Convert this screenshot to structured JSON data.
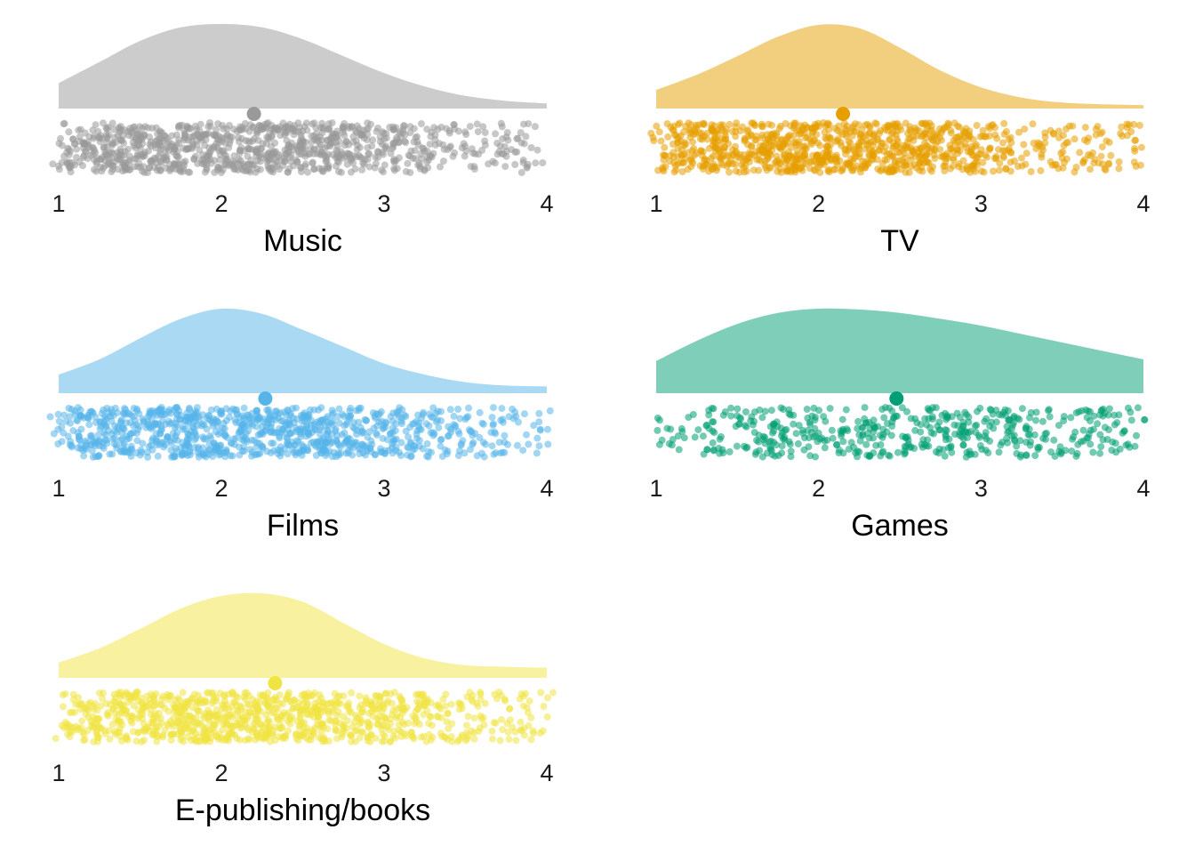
{
  "chart_data": [
    {
      "type": "raincloud",
      "title": "Music",
      "color": "#999999",
      "xlim": [
        1,
        4
      ],
      "xticks": [
        "1",
        "2",
        "3",
        "4"
      ],
      "mean": 2.2,
      "density": {
        "x": [
          1.0,
          1.25,
          1.5,
          1.75,
          2.0,
          2.25,
          2.5,
          2.75,
          3.0,
          3.25,
          3.5,
          3.75,
          4.0
        ],
        "y": [
          0.3,
          0.55,
          0.8,
          0.96,
          1.0,
          0.96,
          0.82,
          0.62,
          0.42,
          0.26,
          0.15,
          0.09,
          0.06
        ]
      },
      "point_density": {
        "x": [
          1.0,
          1.25,
          1.5,
          1.75,
          2.0,
          2.25,
          2.5,
          2.75,
          3.0,
          3.25,
          3.5,
          3.75,
          4.0
        ],
        "w": [
          0.55,
          0.85,
          1.0,
          1.0,
          1.0,
          1.0,
          0.95,
          0.85,
          0.7,
          0.45,
          0.35,
          0.25,
          0.2
        ]
      },
      "n_points": 1000
    },
    {
      "type": "raincloud",
      "title": "TV",
      "color": "#E69F00",
      "xlim": [
        1,
        4
      ],
      "xticks": [
        "1",
        "2",
        "3",
        "4"
      ],
      "mean": 2.15,
      "density": {
        "x": [
          1.0,
          1.25,
          1.5,
          1.75,
          2.0,
          2.25,
          2.5,
          2.75,
          3.0,
          3.25,
          3.5,
          3.75,
          4.0
        ],
        "y": [
          0.22,
          0.4,
          0.62,
          0.85,
          0.99,
          0.95,
          0.72,
          0.45,
          0.25,
          0.13,
          0.07,
          0.05,
          0.04
        ]
      },
      "point_density": {
        "x": [
          1.0,
          1.25,
          1.5,
          1.75,
          2.0,
          2.25,
          2.5,
          2.75,
          3.0,
          3.25,
          3.5,
          3.75,
          4.0
        ],
        "w": [
          0.5,
          0.8,
          0.9,
          1.0,
          1.0,
          1.0,
          0.9,
          0.75,
          0.55,
          0.35,
          0.25,
          0.2,
          0.18
        ]
      },
      "n_points": 1000
    },
    {
      "type": "raincloud",
      "title": "Films",
      "color": "#56B4E9",
      "xlim": [
        1,
        4
      ],
      "xticks": [
        "1",
        "2",
        "3",
        "4"
      ],
      "mean": 2.27,
      "density": {
        "x": [
          1.0,
          1.25,
          1.5,
          1.75,
          2.0,
          2.25,
          2.5,
          2.75,
          3.0,
          3.25,
          3.5,
          3.75,
          4.0
        ],
        "y": [
          0.22,
          0.4,
          0.65,
          0.88,
          1.0,
          0.94,
          0.75,
          0.55,
          0.35,
          0.22,
          0.13,
          0.09,
          0.08
        ]
      },
      "point_density": {
        "x": [
          1.0,
          1.25,
          1.5,
          1.75,
          2.0,
          2.25,
          2.5,
          2.75,
          3.0,
          3.25,
          3.5,
          3.75,
          4.0
        ],
        "w": [
          0.5,
          0.8,
          0.95,
          1.0,
          1.0,
          1.0,
          0.95,
          0.85,
          0.7,
          0.45,
          0.35,
          0.25,
          0.22
        ]
      },
      "n_points": 1000
    },
    {
      "type": "raincloud",
      "title": "Games",
      "color": "#009E73",
      "xlim": [
        1,
        4
      ],
      "xticks": [
        "1",
        "2",
        "3",
        "4"
      ],
      "mean": 2.48,
      "density": {
        "x": [
          1.0,
          1.25,
          1.5,
          1.75,
          2.0,
          2.25,
          2.5,
          2.75,
          3.0,
          3.25,
          3.5,
          3.75,
          4.0
        ],
        "y": [
          0.38,
          0.62,
          0.82,
          0.95,
          1.0,
          0.99,
          0.95,
          0.88,
          0.8,
          0.7,
          0.6,
          0.5,
          0.4
        ]
      },
      "point_density": {
        "x": [
          1.0,
          1.25,
          1.5,
          1.75,
          2.0,
          2.25,
          2.5,
          2.75,
          3.0,
          3.25,
          3.5,
          3.75,
          4.0
        ],
        "w": [
          0.45,
          0.55,
          0.6,
          0.65,
          0.7,
          0.7,
          0.72,
          0.7,
          0.65,
          0.62,
          0.6,
          0.55,
          0.5
        ]
      },
      "n_points": 500
    },
    {
      "type": "raincloud",
      "title": "E-publishing/books",
      "color": "#F0E442",
      "xlim": [
        1,
        4
      ],
      "xticks": [
        "1",
        "2",
        "3",
        "4"
      ],
      "mean": 2.33,
      "density": {
        "x": [
          1.0,
          1.25,
          1.5,
          1.75,
          2.0,
          2.25,
          2.5,
          2.75,
          3.0,
          3.25,
          3.5,
          3.75,
          4.0
        ],
        "y": [
          0.18,
          0.35,
          0.58,
          0.82,
          0.97,
          1.0,
          0.9,
          0.65,
          0.4,
          0.23,
          0.15,
          0.13,
          0.12
        ]
      },
      "point_density": {
        "x": [
          1.0,
          1.25,
          1.5,
          1.75,
          2.0,
          2.25,
          2.5,
          2.75,
          3.0,
          3.25,
          3.5,
          3.75,
          4.0
        ],
        "w": [
          0.5,
          0.75,
          0.9,
          1.0,
          1.0,
          1.0,
          0.95,
          0.85,
          0.7,
          0.45,
          0.35,
          0.3,
          0.3
        ]
      },
      "n_points": 1000
    }
  ]
}
